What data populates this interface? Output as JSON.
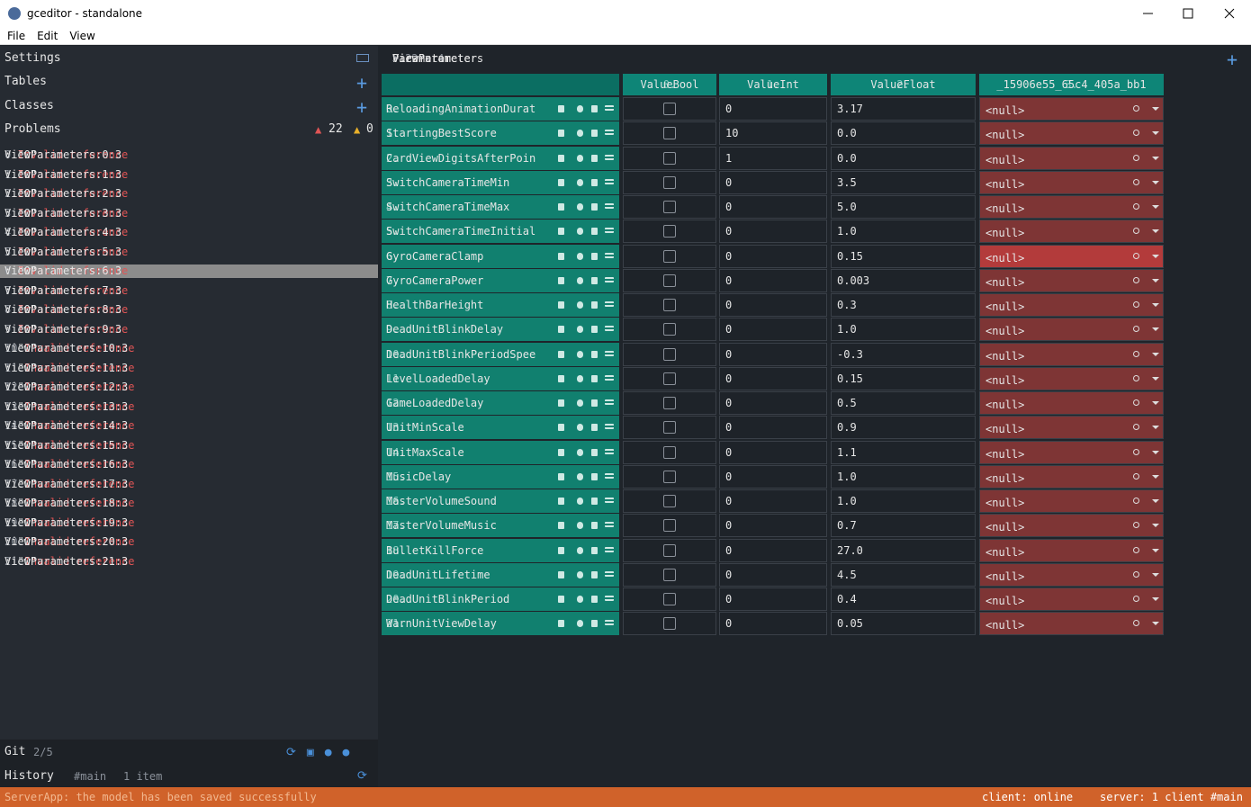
{
  "window": {
    "title": "gceditor - standalone"
  },
  "menu": [
    "File",
    "Edit",
    "View"
  ],
  "sidebar": {
    "sections": [
      "Settings",
      "Tables",
      "Classes",
      "Problems"
    ],
    "errors": "22",
    "warnings": "0"
  },
  "problems": [
    {
      "index": "0.",
      "ref": "ViewParameters:0:3",
      "message": "Invalid reference",
      "detail": ": \"0\""
    },
    {
      "index": "1.",
      "ref": "ViewParameters:1:3",
      "message": "Invalid reference",
      "detail": ": \"0\""
    },
    {
      "index": "2.",
      "ref": "ViewParameters:2:3",
      "message": "Invalid reference",
      "detail": ": \"0\""
    },
    {
      "index": "3.",
      "ref": "ViewParameters:3:3",
      "message": "Invalid reference",
      "detail": ": \"0\""
    },
    {
      "index": "4.",
      "ref": "ViewParameters:4:3",
      "message": "Invalid reference",
      "detail": ": \"0\""
    },
    {
      "index": "5.",
      "ref": "ViewParameters:5:3",
      "message": "Invalid reference",
      "detail": ": \"0\""
    },
    {
      "index": "6.",
      "ref": "ViewParameters:6:3",
      "message": "Invalid reference",
      "detail": ": \"0\""
    },
    {
      "index": "7.",
      "ref": "ViewParameters:7:3",
      "message": "Invalid reference",
      "detail": ": \"0\""
    },
    {
      "index": "8.",
      "ref": "ViewParameters:8:3",
      "message": "Invalid reference",
      "detail": ": \"0\""
    },
    {
      "index": "9.",
      "ref": "ViewParameters:9:3",
      "message": "Invalid reference",
      "detail": ": \"0\""
    },
    {
      "index": "10.",
      "ref": "ViewParameters:10:3",
      "message": "Invalid reference",
      "detail": ": \"0\""
    },
    {
      "index": "11.",
      "ref": "ViewParameters:11:3",
      "message": "Invalid reference",
      "detail": ": \"0\""
    },
    {
      "index": "12.",
      "ref": "ViewParameters:12:3",
      "message": "Invalid reference",
      "detail": ": \"0\""
    },
    {
      "index": "13.",
      "ref": "ViewParameters:13:3",
      "message": "Invalid reference",
      "detail": ": \"0\""
    },
    {
      "index": "14.",
      "ref": "ViewParameters:14:3",
      "message": "Invalid reference",
      "detail": ": \"0\""
    },
    {
      "index": "15.",
      "ref": "ViewParameters:15:3",
      "message": "Invalid reference",
      "detail": ": \"0\""
    },
    {
      "index": "16.",
      "ref": "ViewParameters:16:3",
      "message": "Invalid reference",
      "detail": ": \"0\""
    },
    {
      "index": "17.",
      "ref": "ViewParameters:17:3",
      "message": "Invalid reference",
      "detail": ": \"0\""
    },
    {
      "index": "18.",
      "ref": "ViewParameters:18:3",
      "message": "Invalid reference",
      "detail": ": \"0\""
    },
    {
      "index": "19.",
      "ref": "ViewParameters:19:3",
      "message": "Invalid reference",
      "detail": ": \"0\""
    },
    {
      "index": "20.",
      "ref": "ViewParameters:20:3",
      "message": "Invalid reference",
      "detail": ": \"0\""
    },
    {
      "index": "21.",
      "ref": "ViewParameters:21:3",
      "message": "Invalid reference",
      "detail": ": \"0\""
    }
  ],
  "git": {
    "label": "Git",
    "count": "2/5"
  },
  "history": {
    "label": "History",
    "branch": "#main",
    "items": "1 item"
  },
  "breadcrumb": {
    "parts": [
      "ViewParameters",
      ":",
      "Parameter",
      ">",
      "ViewParameter"
    ],
    "size": "22 x 4"
  },
  "table": {
    "columns": [
      {
        "index": "0.",
        "name": "ValueBool"
      },
      {
        "index": "1.",
        "name": "ValueInt"
      },
      {
        "index": "2.",
        "name": "ValueFloat"
      },
      {
        "index": "3.",
        "name": "_15906e55_65c4_405a_bb1"
      }
    ],
    "rows": [
      {
        "index": "0.",
        "name": "ReloadingAnimationDurati",
        "int": "0",
        "float": "3.17",
        "ref": "<null>"
      },
      {
        "index": "1.",
        "name": "StartingBestScore",
        "int": "10",
        "float": "0.0",
        "ref": "<null>"
      },
      {
        "index": "2.",
        "name": "CardViewDigitsAfterPoint",
        "int": "1",
        "float": "0.0",
        "ref": "<null>"
      },
      {
        "index": "3.",
        "name": "SwitchCameraTimeMin",
        "int": "0",
        "float": "3.5",
        "ref": "<null>"
      },
      {
        "index": "4.",
        "name": "SwitchCameraTimeMax",
        "int": "0",
        "float": "5.0",
        "ref": "<null>"
      },
      {
        "index": "5.",
        "name": "SwitchCameraTimeInitial",
        "int": "0",
        "float": "1.0",
        "ref": "<null>"
      },
      {
        "index": "6.",
        "name": "GyroCameraClamp",
        "int": "0",
        "float": "0.15",
        "ref": "<null>"
      },
      {
        "index": "7.",
        "name": "GyroCameraPower",
        "int": "0",
        "float": "0.003",
        "ref": "<null>"
      },
      {
        "index": "8.",
        "name": "HealthBarHeight",
        "int": "0",
        "float": "0.3",
        "ref": "<null>"
      },
      {
        "index": "9.",
        "name": "DeadUnitBlinkDelay",
        "int": "0",
        "float": "1.0",
        "ref": "<null>"
      },
      {
        "index": "10.",
        "name": "DeadUnitBlinkPeriodSpee",
        "int": "0",
        "float": "-0.3",
        "ref": "<null>"
      },
      {
        "index": "11.",
        "name": "LevelLoadedDelay",
        "int": "0",
        "float": "0.15",
        "ref": "<null>"
      },
      {
        "index": "12.",
        "name": "GameLoadedDelay",
        "int": "0",
        "float": "0.5",
        "ref": "<null>"
      },
      {
        "index": "13.",
        "name": "UnitMinScale",
        "int": "0",
        "float": "0.9",
        "ref": "<null>"
      },
      {
        "index": "14.",
        "name": "UnitMaxScale",
        "int": "0",
        "float": "1.1",
        "ref": "<null>"
      },
      {
        "index": "15.",
        "name": "MusicDelay",
        "int": "0",
        "float": "1.0",
        "ref": "<null>"
      },
      {
        "index": "16.",
        "name": "MasterVolumeSound",
        "int": "0",
        "float": "1.0",
        "ref": "<null>"
      },
      {
        "index": "17.",
        "name": "MasterVolumeMusic",
        "int": "0",
        "float": "0.7",
        "ref": "<null>"
      },
      {
        "index": "18.",
        "name": "BulletKillForce",
        "int": "0",
        "float": "27.0",
        "ref": "<null>"
      },
      {
        "index": "19.",
        "name": "DeadUnitLifetime",
        "int": "0",
        "float": "4.5",
        "ref": "<null>"
      },
      {
        "index": "20.",
        "name": "DeadUnitBlinkPeriod",
        "int": "0",
        "float": "0.4",
        "ref": "<null>"
      },
      {
        "index": "21.",
        "name": "WarnUnitViewDelay",
        "int": "0",
        "float": "0.05",
        "ref": "<null>"
      }
    ]
  },
  "status": {
    "message": "ServerApp: the model has been saved successfully",
    "client": "client: online",
    "server": "server: 1 client #main"
  }
}
